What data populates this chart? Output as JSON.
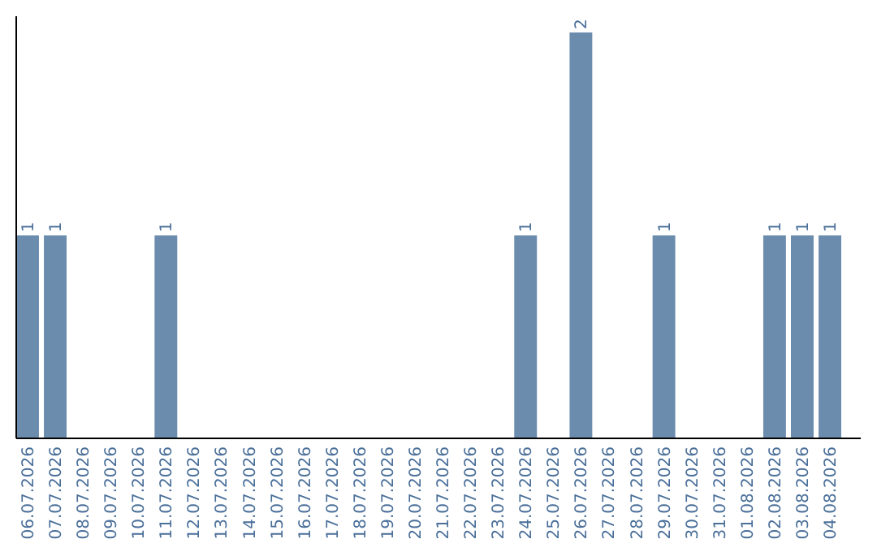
{
  "chart_data": {
    "type": "bar",
    "categories": [
      "06.07.2026",
      "07.07.2026",
      "08.07.2026",
      "09.07.2026",
      "10.07.2026",
      "11.07.2026",
      "12.07.2026",
      "13.07.2026",
      "14.07.2026",
      "15.07.2026",
      "16.07.2026",
      "17.07.2026",
      "18.07.2026",
      "19.07.2026",
      "20.07.2026",
      "21.07.2026",
      "22.07.2026",
      "23.07.2026",
      "24.07.2026",
      "25.07.2026",
      "26.07.2026",
      "27.07.2026",
      "28.07.2026",
      "29.07.2026",
      "30.07.2026",
      "31.07.2026",
      "01.08.2026",
      "02.08.2026",
      "03.08.2026",
      "04.08.2026"
    ],
    "values": [
      1,
      1,
      0,
      0,
      0,
      1,
      0,
      0,
      0,
      0,
      0,
      0,
      0,
      0,
      0,
      0,
      0,
      0,
      1,
      0,
      2,
      0,
      0,
      1,
      0,
      0,
      0,
      1,
      1,
      1
    ],
    "value_labels": [
      "1",
      "1",
      null,
      null,
      null,
      "1",
      null,
      null,
      null,
      null,
      null,
      null,
      null,
      null,
      null,
      null,
      null,
      null,
      "1",
      null,
      "2",
      null,
      null,
      "1",
      null,
      null,
      null,
      "1",
      "1",
      "1"
    ],
    "color": "#6b8cad",
    "tick_labels": "x"
  }
}
